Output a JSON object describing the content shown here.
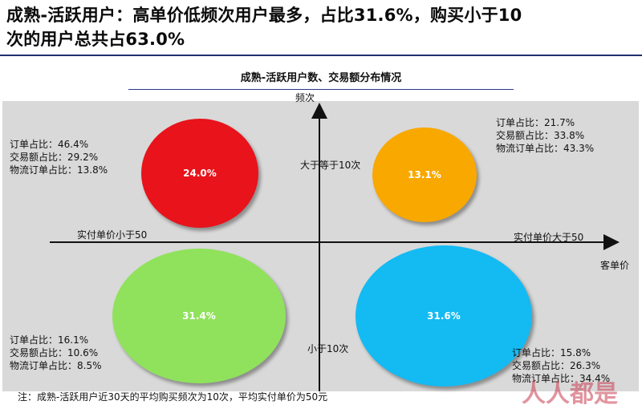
{
  "headline": {
    "line1": "成熟-活跃用户：高单价低频次用户最多，占比31.6%，购买小于10",
    "line2": "次的用户总共占63.0%"
  },
  "diagram": {
    "title": "成熟-活跃用户数、交易额分布情况",
    "axis_y_label": "频次",
    "axis_x_label": "客单价",
    "label_left": "实付单价小于50",
    "label_right": "实付单价大于50",
    "label_top": "大于等于10次",
    "label_bottom": "小于10次"
  },
  "quadrants": {
    "top_left": {
      "share": "24.0%",
      "color": "#e8131b",
      "stats": [
        "订单占比：46.4%",
        "交易额占比：29.2%",
        "物流订单占比：13.8%"
      ]
    },
    "top_right": {
      "share": "13.1%",
      "color": "#f9a800",
      "stats": [
        "订单占比：21.7%",
        "交易额占比：33.8%",
        "物流订单占比：43.3%"
      ]
    },
    "bottom_left": {
      "share": "31.4%",
      "color": "#90e25c",
      "stats": [
        "订单占比：16.1%",
        "交易额占比：10.6%",
        "物流订单占比：8.5%"
      ]
    },
    "bottom_right": {
      "share": "31.6%",
      "color": "#14baf2",
      "stats": [
        "订单占比：15.8%",
        "交易额占比：26.3%",
        "物流订单占比：34.4%"
      ]
    }
  },
  "footnote": "注：成熟-活跃用户近30天的平均购买频次为10次，平均实付单价为50元",
  "watermark": "人人都是"
}
